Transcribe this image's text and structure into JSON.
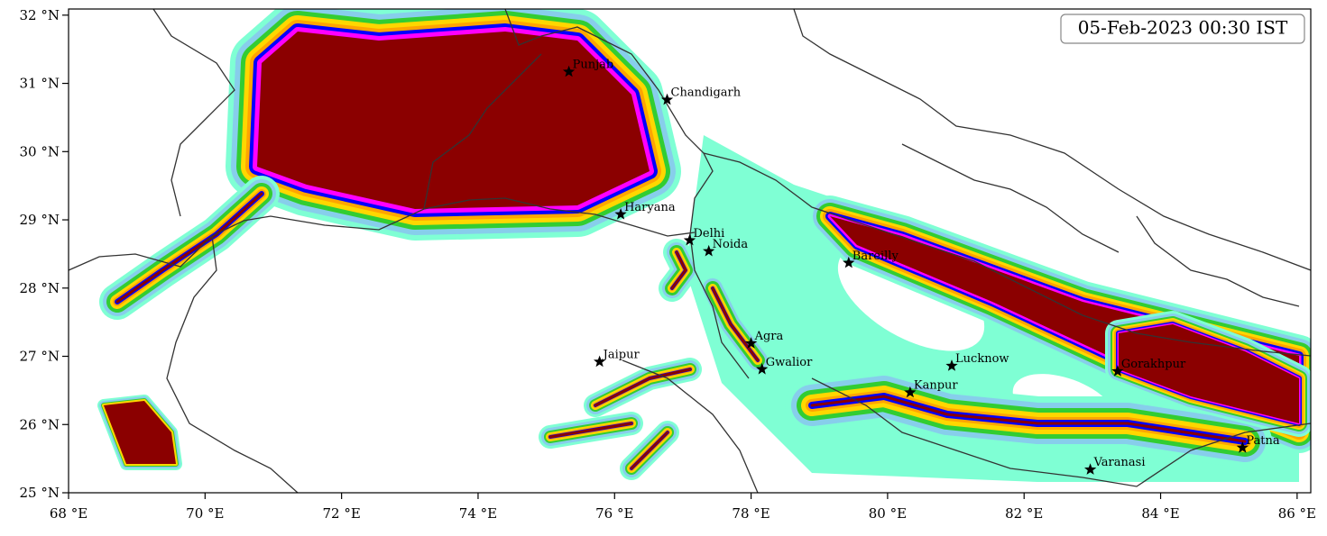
{
  "map": {
    "title": "05-Feb-2023 00:30 IST",
    "xlim": [
      68,
      86.2
    ],
    "ylim": [
      25,
      32.09
    ],
    "xticks": [
      {
        "value": 68,
        "label": "68 °E"
      },
      {
        "value": 70,
        "label": "70 °E"
      },
      {
        "value": 72,
        "label": "72 °E"
      },
      {
        "value": 74,
        "label": "74 °E"
      },
      {
        "value": 76,
        "label": "76 °E"
      },
      {
        "value": 78,
        "label": "78 °E"
      },
      {
        "value": 80,
        "label": "80 °E"
      },
      {
        "value": 82,
        "label": "82 °E"
      },
      {
        "value": 84,
        "label": "84 °E"
      },
      {
        "value": 86,
        "label": "86 °E"
      }
    ],
    "yticks": [
      {
        "value": 25,
        "label": "25 °N"
      },
      {
        "value": 26,
        "label": "26 °N"
      },
      {
        "value": 27,
        "label": "27 °N"
      },
      {
        "value": 28,
        "label": "28 °N"
      },
      {
        "value": 29,
        "label": "29 °N"
      },
      {
        "value": 30,
        "label": "30 °N"
      },
      {
        "value": 31,
        "label": "31 °N"
      },
      {
        "value": 32,
        "label": "32 °N"
      }
    ],
    "cities": [
      {
        "name": "Punjab",
        "lon": 75.33,
        "lat": 31.17
      },
      {
        "name": "Chandigarh",
        "lon": 76.77,
        "lat": 30.76
      },
      {
        "name": "Haryana",
        "lon": 76.09,
        "lat": 29.08
      },
      {
        "name": "Delhi",
        "lon": 77.1,
        "lat": 28.7
      },
      {
        "name": "Noida",
        "lon": 77.38,
        "lat": 28.54
      },
      {
        "name": "Bareilly",
        "lon": 79.43,
        "lat": 28.37
      },
      {
        "name": "Agra",
        "lon": 78.0,
        "lat": 27.19
      },
      {
        "name": "Jaipur",
        "lon": 75.78,
        "lat": 26.92
      },
      {
        "name": "Gwalior",
        "lon": 78.16,
        "lat": 26.81
      },
      {
        "name": "Lucknow",
        "lon": 80.94,
        "lat": 26.86
      },
      {
        "name": "Kanpur",
        "lon": 80.33,
        "lat": 26.47
      },
      {
        "name": "Gorakhpur",
        "lon": 83.37,
        "lat": 26.78
      },
      {
        "name": "Varanasi",
        "lon": 82.97,
        "lat": 25.34
      },
      {
        "name": "Patna",
        "lon": 85.2,
        "lat": 25.66
      }
    ]
  }
}
